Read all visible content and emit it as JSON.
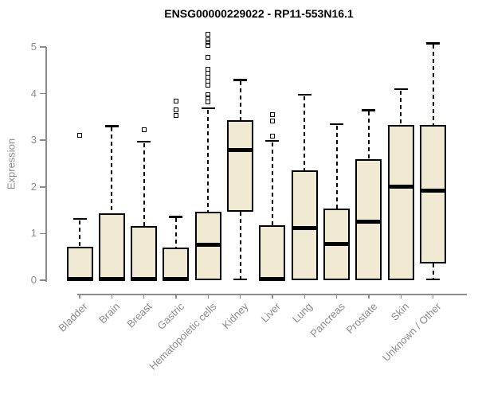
{
  "chart_data": {
    "type": "boxplot",
    "title": "ENSG00000229022 - RP11-553N16.1",
    "ylabel": "Expression",
    "xlabel": "",
    "ylim": [
      0,
      5
    ],
    "yticks": [
      0,
      1,
      2,
      3,
      4,
      5
    ],
    "grid": "off",
    "categories": [
      "Bladder",
      "Brain",
      "Breast",
      "Gastric",
      "Hematopoietic cells",
      "Kidney",
      "Liver",
      "Lung",
      "Pancreas",
      "Prostate",
      "Skin",
      "Unknown / Other"
    ],
    "series": [
      {
        "name": "Bladder",
        "q1": 0,
        "median": 0.03,
        "q3": 0.72,
        "whisker_low": null,
        "whisker_high": 1.32,
        "outliers": [
          3.1
        ]
      },
      {
        "name": "Brain",
        "q1": 0,
        "median": 0.03,
        "q3": 1.43,
        "whisker_low": null,
        "whisker_high": 3.31,
        "outliers": []
      },
      {
        "name": "Breast",
        "q1": 0,
        "median": 0.03,
        "q3": 1.16,
        "whisker_low": null,
        "whisker_high": 2.97,
        "outliers": [
          3.23
        ]
      },
      {
        "name": "Gastric",
        "q1": 0,
        "median": 0.03,
        "q3": 0.7,
        "whisker_low": null,
        "whisker_high": 1.36,
        "outliers": [
          3.54,
          3.66,
          3.84
        ]
      },
      {
        "name": "Hematopoietic cells",
        "q1": 0,
        "median": 0.76,
        "q3": 1.46,
        "whisker_low": null,
        "whisker_high": 3.69,
        "outliers": [
          3.82,
          3.9,
          3.97,
          4.18,
          4.27,
          4.36,
          4.44,
          4.52,
          4.77,
          5.04,
          5.1,
          5.15,
          5.28
        ]
      },
      {
        "name": "Kidney",
        "q1": 1.47,
        "median": 2.79,
        "q3": 3.43,
        "whisker_low": 0.02,
        "whisker_high": 4.3,
        "outliers": []
      },
      {
        "name": "Liver",
        "q1": 0,
        "median": 0.03,
        "q3": 1.17,
        "whisker_low": null,
        "whisker_high": 2.99,
        "outliers": [
          3.09,
          3.42,
          3.55
        ]
      },
      {
        "name": "Lung",
        "q1": 0,
        "median": 1.11,
        "q3": 2.35,
        "whisker_low": null,
        "whisker_high": 3.98,
        "outliers": []
      },
      {
        "name": "Pancreas",
        "q1": 0,
        "median": 0.77,
        "q3": 1.53,
        "whisker_low": null,
        "whisker_high": 3.35,
        "outliers": []
      },
      {
        "name": "Prostate",
        "q1": 0,
        "median": 1.26,
        "q3": 2.59,
        "whisker_low": null,
        "whisker_high": 3.65,
        "outliers": []
      },
      {
        "name": "Skin",
        "q1": 0,
        "median": 2.0,
        "q3": 3.32,
        "whisker_low": null,
        "whisker_high": 4.1,
        "outliers": []
      },
      {
        "name": "Unknown / Other",
        "q1": 0.35,
        "median": 1.92,
        "q3": 3.32,
        "whisker_low": 0.02,
        "whisker_high": 5.08,
        "outliers": []
      }
    ],
    "colors": {
      "box_fill": "#F0EAD2",
      "box_border": "#000000",
      "median": "#000000",
      "axis": "#8C8C8C",
      "title_text": "#000000",
      "background": "#FFFFFF"
    }
  }
}
